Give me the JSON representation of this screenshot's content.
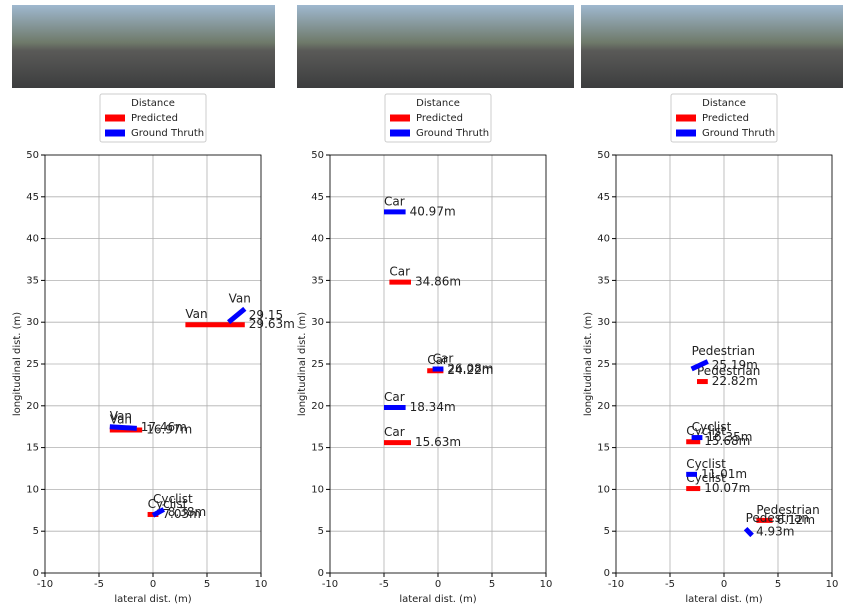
{
  "chart_data": [
    {
      "type": "segment",
      "legend_title": "Distance",
      "xlabel": "lateral dist. (m)",
      "ylabel": "longitudinal dist. (m)",
      "xlim": [
        -10,
        10
      ],
      "ylim": [
        0,
        50
      ],
      "xticks": [
        -10,
        -5,
        0,
        5,
        10
      ],
      "yticks": [
        0,
        5,
        10,
        15,
        20,
        25,
        30,
        35,
        40,
        45,
        50
      ],
      "grid": true,
      "series": [
        {
          "name": "Predicted",
          "color": "#ff0000",
          "classes": [
            "Van",
            "Van",
            "Cyclist"
          ],
          "distance_labels": [
            "29.63m",
            "16.97m",
            "7.03m"
          ],
          "x_start": [
            3,
            -4,
            -0.5
          ],
          "x_end": [
            8.5,
            -1,
            0.5
          ],
          "y_start": [
            29.7,
            17.1,
            7
          ],
          "y_end": [
            29.7,
            17.1,
            7
          ]
        },
        {
          "name": "Ground Thruth",
          "color": "#0000ff",
          "classes": [
            "Van",
            "Van",
            "Cyclist"
          ],
          "distance_labels": [
            "29.15",
            "17.46m",
            "8.38m"
          ],
          "x_start": [
            7,
            -4,
            0
          ],
          "x_end": [
            8.5,
            -1.5,
            1
          ],
          "y_start": [
            30,
            17.5,
            6.9
          ],
          "y_end": [
            31.6,
            17.3,
            7.6
          ]
        }
      ]
    },
    {
      "type": "segment",
      "legend_title": "Distance",
      "xlabel": "lateral dist. (m)",
      "ylabel": "longitudinal dist. (m)",
      "xlim": [
        -10,
        10
      ],
      "ylim": [
        0,
        50
      ],
      "xticks": [
        -10,
        -5,
        0,
        5,
        10
      ],
      "yticks": [
        0,
        5,
        10,
        15,
        20,
        25,
        30,
        35,
        40,
        45,
        50
      ],
      "grid": true,
      "series": [
        {
          "name": "Predicted",
          "color": "#ff0000",
          "classes": [
            "Car",
            "Car",
            "Car"
          ],
          "distance_labels": [
            "34.86m",
            "24.22m",
            "15.63m"
          ],
          "x_start": [
            -4.5,
            -1,
            -5
          ],
          "x_end": [
            -2.5,
            0.5,
            -2.5
          ],
          "y_start": [
            34.8,
            24.2,
            15.6
          ],
          "y_end": [
            34.8,
            24.2,
            15.6
          ]
        },
        {
          "name": "Ground Thruth",
          "color": "#0000ff",
          "classes": [
            "Car",
            "Car",
            "Car"
          ],
          "distance_labels": [
            "40.97m",
            "26.08m",
            "18.34m"
          ],
          "x_start": [
            -5,
            -0.5,
            -5
          ],
          "x_end": [
            -3,
            0.5,
            -3
          ],
          "y_start": [
            43.2,
            24.4,
            19.8
          ],
          "y_end": [
            43.2,
            24.4,
            19.8
          ]
        }
      ]
    },
    {
      "type": "segment",
      "legend_title": "Distance",
      "xlabel": "lateral dist. (m)",
      "ylabel": "longitudinal dist. (m)",
      "xlim": [
        -10,
        10
      ],
      "ylim": [
        0,
        50
      ],
      "xticks": [
        -10,
        -5,
        0,
        5,
        10
      ],
      "yticks": [
        0,
        5,
        10,
        15,
        20,
        25,
        30,
        35,
        40,
        45,
        50
      ],
      "grid": true,
      "series": [
        {
          "name": "Predicted",
          "color": "#ff0000",
          "classes": [
            "Pedestrian",
            "Cyclist",
            "Cyclist",
            "Pedestrian"
          ],
          "distance_labels": [
            "22.82m",
            "15.68m",
            "10.07m",
            "6.12m"
          ],
          "x_start": [
            -2.5,
            -3.5,
            -3.5,
            3
          ],
          "x_end": [
            -1.5,
            -2.2,
            -2.2,
            4.5
          ],
          "y_start": [
            22.9,
            15.7,
            10.1,
            6.3
          ],
          "y_end": [
            22.9,
            15.7,
            10.1,
            6.3
          ]
        },
        {
          "name": "Ground Thruth",
          "color": "#0000ff",
          "classes": [
            "Pedestrian",
            "Cyclist",
            "Cyclist",
            "Pedestrian"
          ],
          "distance_labels": [
            "25.19m",
            "16.35m",
            "11.01m",
            "4.93m"
          ],
          "x_start": [
            -3,
            -3,
            -3.5,
            2
          ],
          "x_end": [
            -1.5,
            -2,
            -2.5,
            2.6
          ],
          "y_start": [
            24.4,
            16.2,
            11.8,
            5.3
          ],
          "y_end": [
            25.3,
            16.2,
            11.8,
            4.5
          ]
        }
      ]
    }
  ]
}
